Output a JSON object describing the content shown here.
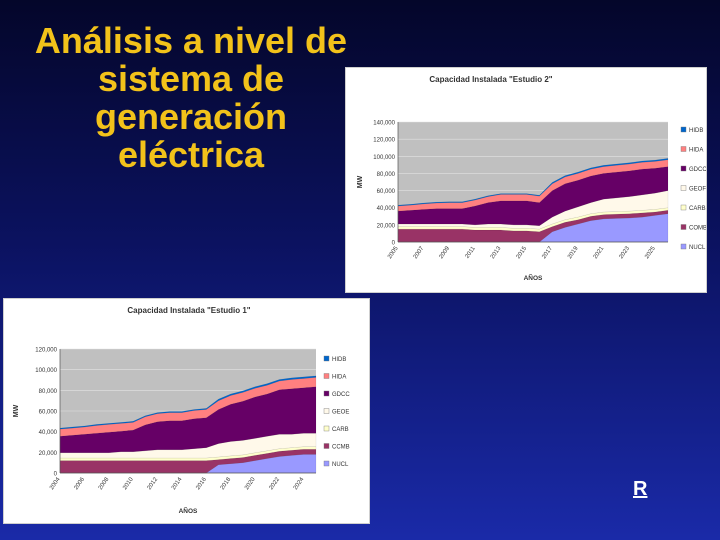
{
  "slide": {
    "title_lines": [
      "Análisis a nivel de",
      "sistema de",
      "generación",
      "eléctrica"
    ],
    "link_label": "R"
  },
  "chart_data": [
    {
      "type": "area",
      "stacked": true,
      "title": "Capacidad Instalada \"Estudio 2\"",
      "xlabel": "AÑOS",
      "ylabel": "MW",
      "ylim": [
        0,
        140000
      ],
      "yticks": [
        "0",
        "20,000",
        "40,000",
        "60,000",
        "80,000",
        "100,000",
        "120,000",
        "140,000"
      ],
      "x": [
        2005,
        2006,
        2007,
        2008,
        2009,
        2010,
        2011,
        2012,
        2013,
        2014,
        2015,
        2016,
        2017,
        2018,
        2019,
        2020,
        2021,
        2022,
        2023,
        2024,
        2025,
        2026
      ],
      "xticks": [
        "2005",
        "2007",
        "2009",
        "2011",
        "2013",
        "2015",
        "2017",
        "2019",
        "2021",
        "2023",
        "2025"
      ],
      "grid": true,
      "legend_position": "right",
      "series": [
        {
          "name": "NUCL",
          "color": "#9999ff",
          "values": [
            0,
            0,
            0,
            0,
            0,
            0,
            0,
            0,
            0,
            0,
            0,
            0,
            12000,
            17000,
            21000,
            25000,
            27000,
            27500,
            28000,
            29000,
            31000,
            33000
          ]
        },
        {
          "name": "COMB",
          "color": "#993366",
          "values": [
            15000,
            15000,
            15000,
            15000,
            15000,
            15000,
            14000,
            14000,
            14000,
            13000,
            13000,
            12000,
            6000,
            6000,
            5000,
            5000,
            5000,
            5000,
            5000,
            5000,
            4000,
            4000
          ]
        },
        {
          "name": "CARB",
          "color": "#ffffcc",
          "values": [
            3000,
            3000,
            3000,
            3000,
            3000,
            3000,
            3000,
            3000,
            3000,
            3000,
            3000,
            3000,
            3000,
            3000,
            3000,
            3000,
            3000,
            3000,
            3000,
            3000,
            3000,
            3000
          ]
        },
        {
          "name": "GEOF",
          "color": "#fff9ea",
          "values": [
            3000,
            3000,
            3000,
            3000,
            3000,
            3000,
            3000,
            4000,
            4000,
            4000,
            4000,
            4000,
            8000,
            10000,
            12000,
            13000,
            15000,
            16000,
            17000,
            18000,
            19000,
            20000
          ]
        },
        {
          "name": "GDCC",
          "color": "#660066",
          "values": [
            15000,
            16000,
            17000,
            18000,
            18000,
            18000,
            22000,
            25000,
            27000,
            28000,
            28000,
            27000,
            31000,
            32000,
            31000,
            31000,
            30000,
            30000,
            30000,
            30000,
            29000,
            28000
          ]
        },
        {
          "name": "HIDA",
          "color": "#ff8080",
          "values": [
            6000,
            6000,
            6500,
            6500,
            7000,
            7000,
            7000,
            7000,
            7500,
            7500,
            7500,
            7500,
            8000,
            8000,
            8000,
            8000,
            8000,
            8000,
            8000,
            8000,
            8000,
            8000
          ]
        },
        {
          "name": "HIDB",
          "color": "#0066cc",
          "values": [
            1000,
            1000,
            1000,
            1000,
            1000,
            1000,
            1000,
            1000,
            1000,
            1000,
            1000,
            1000,
            1500,
            1500,
            1500,
            1500,
            1500,
            1500,
            1500,
            1500,
            1500,
            1500
          ]
        }
      ]
    },
    {
      "type": "area",
      "stacked": true,
      "title": "Capacidad Instalada \"Estudio 1\"",
      "xlabel": "AÑOS",
      "ylabel": "MW",
      "ylim": [
        0,
        120000
      ],
      "yticks": [
        "0",
        "20,000",
        "40,000",
        "60,000",
        "80,000",
        "100,000",
        "120,000"
      ],
      "x": [
        2004,
        2005,
        2006,
        2007,
        2008,
        2009,
        2010,
        2011,
        2012,
        2013,
        2014,
        2015,
        2016,
        2017,
        2018,
        2019,
        2020,
        2021,
        2022,
        2023,
        2024,
        2025
      ],
      "xticks": [
        "2004",
        "2006",
        "2008",
        "2010",
        "2012",
        "2014",
        "2016",
        "2018",
        "2020",
        "2022",
        "2024"
      ],
      "grid": true,
      "legend_position": "right",
      "series": [
        {
          "name": "NUCL",
          "color": "#9999ff",
          "values": [
            0,
            0,
            0,
            0,
            0,
            0,
            0,
            0,
            0,
            0,
            0,
            0,
            0,
            8000,
            9000,
            10000,
            12000,
            14000,
            16000,
            17000,
            18000,
            18000
          ]
        },
        {
          "name": "CCMB",
          "color": "#993366",
          "values": [
            12000,
            12000,
            12000,
            12000,
            12000,
            12000,
            12000,
            12000,
            12000,
            12000,
            12000,
            12000,
            12000,
            5000,
            5000,
            5000,
            5000,
            5000,
            5000,
            5000,
            5000,
            5000
          ]
        },
        {
          "name": "CARB",
          "color": "#ffffcc",
          "values": [
            2500,
            2500,
            2500,
            2500,
            2500,
            2500,
            2500,
            2500,
            2500,
            2500,
            2500,
            2500,
            2500,
            2500,
            2500,
            2500,
            2500,
            2500,
            2500,
            2500,
            2500,
            2500
          ]
        },
        {
          "name": "GEOE",
          "color": "#fff9ea",
          "values": [
            5000,
            5000,
            5000,
            5000,
            5000,
            6000,
            6000,
            7000,
            8000,
            8000,
            8000,
            9000,
            10000,
            13000,
            14000,
            14000,
            14000,
            14000,
            14000,
            13000,
            13000,
            13000
          ]
        },
        {
          "name": "GDCC",
          "color": "#660066",
          "values": [
            16000,
            17000,
            18000,
            19000,
            20000,
            20000,
            21000,
            25000,
            27000,
            28000,
            28000,
            29000,
            29000,
            33000,
            36000,
            38000,
            40000,
            41000,
            43000,
            44000,
            44000,
            45000
          ]
        },
        {
          "name": "HIDA",
          "color": "#ff8080",
          "values": [
            7000,
            7000,
            7000,
            7500,
            7500,
            7500,
            7500,
            8000,
            8000,
            8000,
            8000,
            8000,
            8000,
            8500,
            8500,
            8500,
            8500,
            8500,
            8500,
            9000,
            9000,
            9000
          ]
        },
        {
          "name": "HIDB",
          "color": "#0066cc",
          "values": [
            1000,
            1000,
            1000,
            1000,
            1000,
            1000,
            1000,
            1000,
            1000,
            1000,
            1000,
            1000,
            1000,
            1500,
            1500,
            1500,
            1500,
            1500,
            1500,
            1500,
            1500,
            1500
          ]
        }
      ]
    }
  ]
}
